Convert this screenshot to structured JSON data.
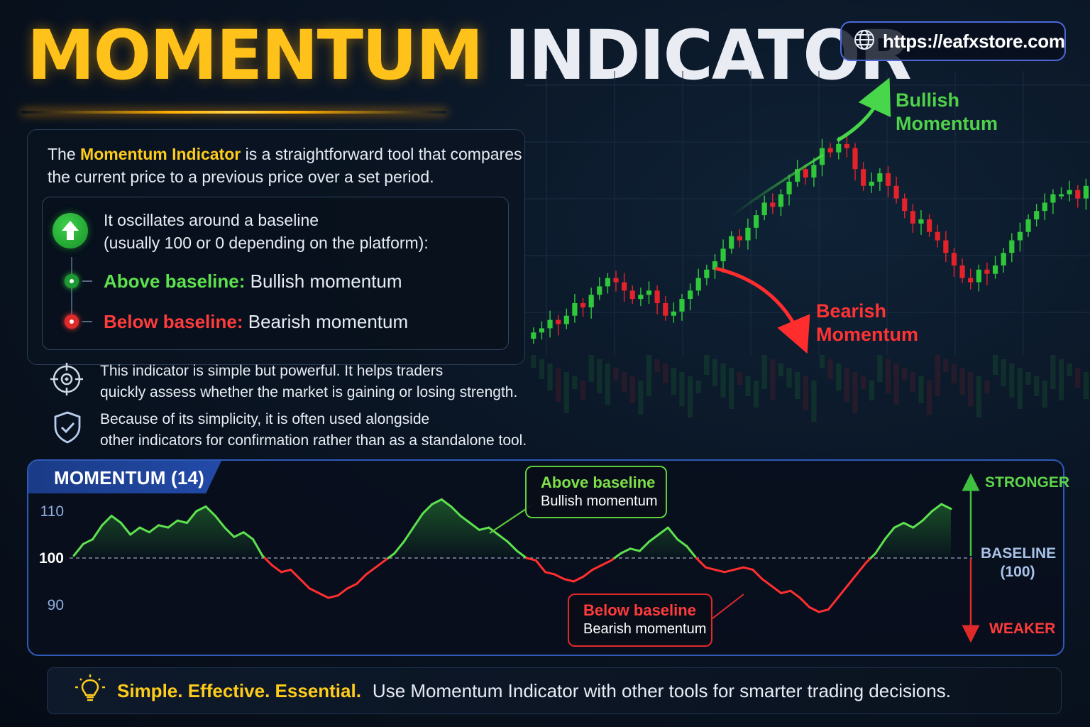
{
  "title": {
    "part1": "MOMENTUM",
    "part2": "INDICATOR"
  },
  "website": {
    "url": "https://eafxstore.com",
    "icon": "globe-icon"
  },
  "intro": {
    "pre": "The",
    "highlight": "Momentum Indicator",
    "post": "is a straightforward tool that compares the current price to a previous price over a set period."
  },
  "baseline_box": {
    "icon": "arrow-up-icon",
    "line1": "It oscillates around a baseline",
    "line2": "(usually 100 or 0 depending on the platform):",
    "above_label": "Above baseline:",
    "above_value": "Bullish momentum",
    "below_label": "Below baseline:",
    "below_value": "Bearish momentum"
  },
  "notes": [
    {
      "icon": "crosshair-icon",
      "line1": "This indicator is simple but powerful. It helps traders",
      "line2": "quickly assess whether the market is gaining or losing strength."
    },
    {
      "icon": "shield-check-icon",
      "line1": "Because of its simplicity, it is often used alongside",
      "line2": "other indicators for confirmation rather than as a standalone tool."
    }
  ],
  "price_chart_labels": {
    "bullish_line1": "Bullish",
    "bullish_line2": "Momentum",
    "bearish_line1": "Bearish",
    "bearish_line2": "Momentum"
  },
  "momentum_panel": {
    "title": "MOMENTUM (14)",
    "callout_above_title": "Above baseline",
    "callout_above_text": "Bullish momentum",
    "callout_below_title": "Below baseline",
    "callout_below_text": "Bearish momentum",
    "stronger": "STRONGER",
    "baseline_line1": "BASELINE",
    "baseline_line2": "(100)",
    "weaker": "WEAKER"
  },
  "footer": {
    "icon": "lightbulb-icon",
    "strong": "Simple. Effective. Essential.",
    "rest": "Use Momentum Indicator with other tools for smarter trading decisions."
  },
  "colors": {
    "accent_yellow": "#ffc21a",
    "bullish": "#4fd24a",
    "bearish": "#ff3333",
    "panel_border": "#2f5ab8"
  },
  "chart_data": [
    {
      "type": "line",
      "title": "MOMENTUM (14)",
      "xlabel": "",
      "ylabel": "",
      "ylim": [
        85,
        115
      ],
      "yticks": [
        90,
        100,
        110
      ],
      "baseline": 100,
      "grid": false,
      "series": [
        {
          "values": [
            100.5,
            103,
            104,
            107,
            109,
            107.5,
            105,
            106.5,
            105.5,
            107,
            106.5,
            108,
            107.5,
            110,
            111,
            109,
            106.5,
            104.5,
            105.5,
            104,
            100.5,
            98.5,
            97,
            97.5,
            95.5,
            93.5,
            92.5,
            91.5,
            92,
            93.5,
            94.5,
            96.5,
            98,
            99.5,
            101,
            103.5,
            106.5,
            109.5,
            111.5,
            112.5,
            111,
            109,
            107.5,
            106,
            106.5,
            105,
            103.5,
            101.5,
            100,
            99.5,
            97,
            96.5,
            95.5,
            95,
            96,
            97.5,
            98.5,
            99.5,
            101,
            102,
            101.5,
            103.5,
            105,
            106.5,
            104,
            102.5,
            100,
            98,
            97.5,
            97,
            97.5,
            98,
            97.5,
            95.5,
            94,
            92.5,
            93,
            91.5,
            89.5,
            88.5,
            89,
            91.5,
            94,
            96.5,
            99,
            101,
            104,
            106.5,
            107.5,
            106.5,
            108,
            110,
            111.5,
            110.5
          ]
        }
      ]
    },
    {
      "type": "candlestick",
      "xlabel": "",
      "ylabel": "",
      "grid": true,
      "series": [
        {
          "name": "",
          "close": [
            73,
            74,
            76,
            75,
            77,
            80,
            79,
            82,
            84,
            86,
            85,
            83,
            81,
            82,
            83,
            80,
            77,
            78,
            81,
            83,
            86,
            88,
            90,
            93,
            96,
            95,
            98,
            101,
            104,
            103,
            106,
            109,
            112,
            110,
            113,
            117,
            116,
            118,
            117,
            112,
            108,
            109,
            111,
            108,
            105,
            102,
            99,
            100,
            97,
            95,
            92,
            89,
            86,
            85,
            88,
            87,
            89,
            92,
            95,
            97,
            100,
            102,
            104,
            106,
            106,
            107,
            105,
            108
          ]
        }
      ]
    }
  ]
}
